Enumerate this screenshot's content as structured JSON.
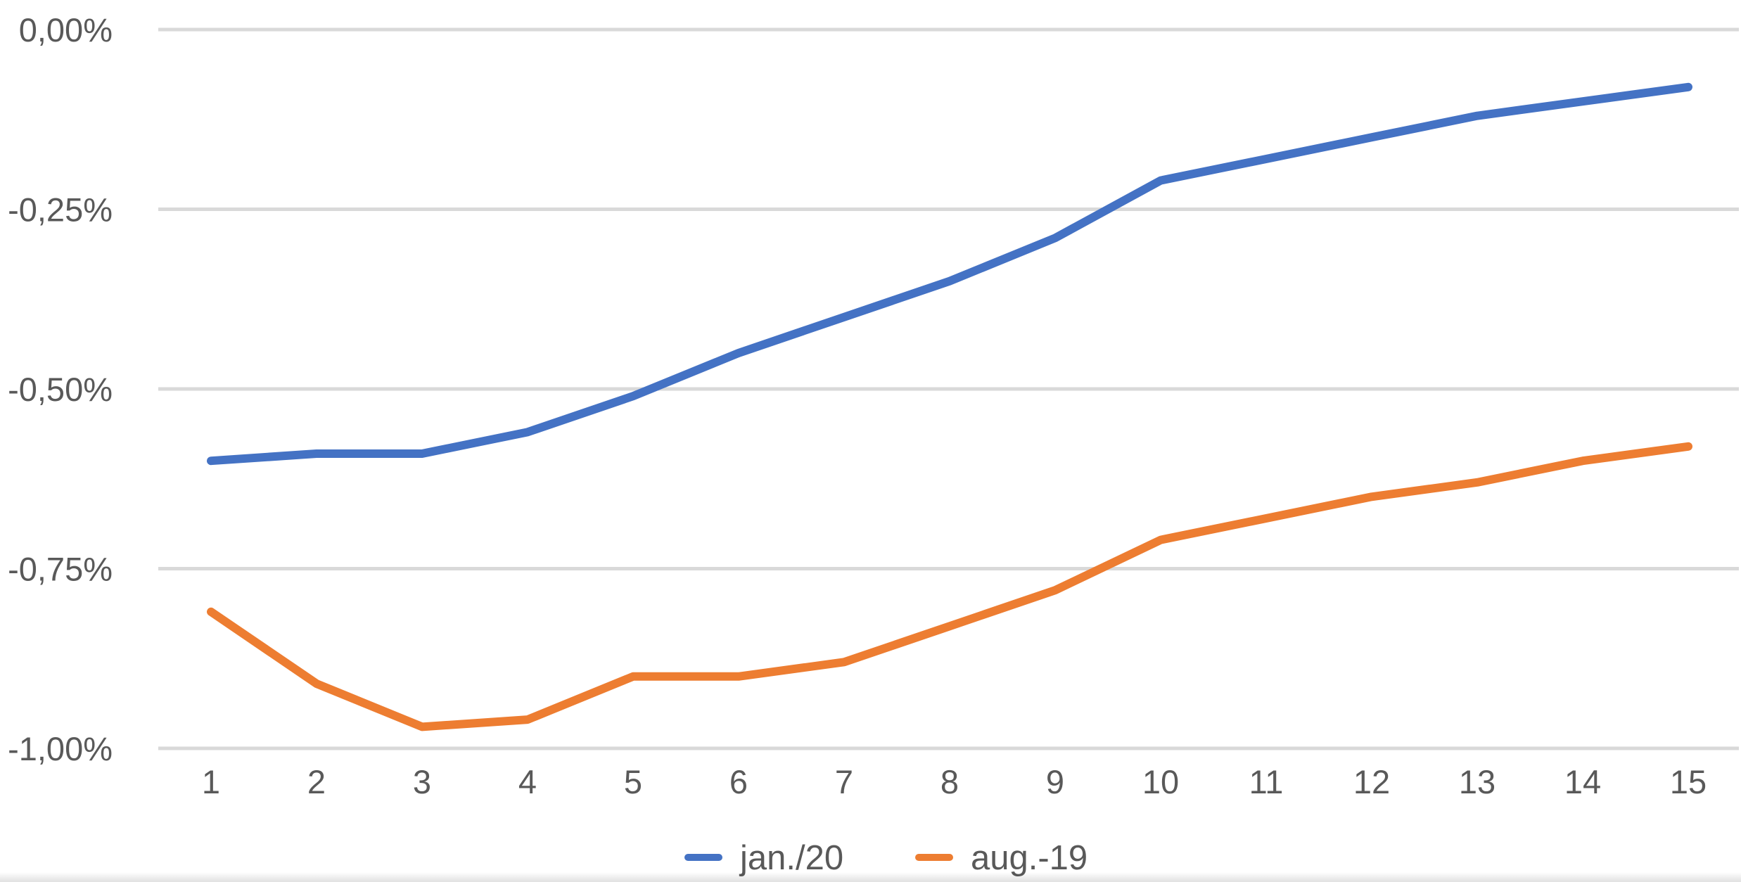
{
  "chart_data": {
    "type": "line",
    "categories": [
      "1",
      "2",
      "3",
      "4",
      "5",
      "6",
      "7",
      "8",
      "9",
      "10",
      "11",
      "12",
      "13",
      "14",
      "15"
    ],
    "series": [
      {
        "name": "jan./20",
        "color": "#4472c4",
        "values": [
          -0.6,
          -0.59,
          -0.59,
          -0.56,
          -0.51,
          -0.45,
          -0.4,
          -0.35,
          -0.29,
          -0.21,
          -0.18,
          -0.15,
          -0.12,
          -0.1,
          -0.08
        ]
      },
      {
        "name": "aug.-19",
        "color": "#ed7d31",
        "values": [
          -0.81,
          -0.91,
          -0.97,
          -0.96,
          -0.9,
          -0.9,
          -0.88,
          -0.83,
          -0.78,
          -0.71,
          -0.68,
          -0.65,
          -0.63,
          -0.6,
          -0.58
        ]
      }
    ],
    "yticks": [
      {
        "value": 0.0,
        "label": "0,00%"
      },
      {
        "value": -0.25,
        "label": "-0,25%"
      },
      {
        "value": -0.5,
        "label": "-0,50%"
      },
      {
        "value": -0.75,
        "label": "-0,75%"
      },
      {
        "value": -1.0,
        "label": "-1,00%"
      }
    ],
    "ylim": [
      -1.0,
      0.0
    ],
    "title": "",
    "xlabel": "",
    "ylabel": "",
    "grid": true,
    "legend_position": "bottom-center"
  }
}
